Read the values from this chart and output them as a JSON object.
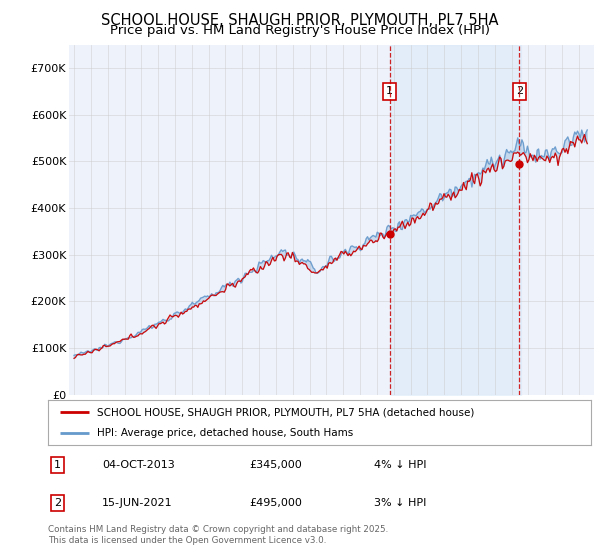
{
  "title": "SCHOOL HOUSE, SHAUGH PRIOR, PLYMOUTH, PL7 5HA",
  "subtitle": "Price paid vs. HM Land Registry's House Price Index (HPI)",
  "ylim": [
    0,
    750000
  ],
  "yticks": [
    0,
    100000,
    200000,
    300000,
    400000,
    500000,
    600000,
    700000
  ],
  "ytick_labels": [
    "£0",
    "£100K",
    "£200K",
    "£300K",
    "£400K",
    "£500K",
    "£600K",
    "£700K"
  ],
  "legend_line1": "SCHOOL HOUSE, SHAUGH PRIOR, PLYMOUTH, PL7 5HA (detached house)",
  "legend_line2": "HPI: Average price, detached house, South Hams",
  "sale1_date": "04-OCT-2013",
  "sale1_price": "£345,000",
  "sale1_note": "4% ↓ HPI",
  "sale2_date": "15-JUN-2021",
  "sale2_price": "£495,000",
  "sale2_note": "3% ↓ HPI",
  "sale1_x": 2013.75,
  "sale2_x": 2021.46,
  "sale1_y": 345000,
  "sale2_y": 495000,
  "copyright_text": "Contains HM Land Registry data © Crown copyright and database right 2025.\nThis data is licensed under the Open Government Licence v3.0.",
  "line_color_red": "#cc0000",
  "line_color_blue": "#6699cc",
  "fill_color_blue": "#d0e4f7",
  "background_color": "#eef2fb",
  "grid_color": "#cccccc",
  "title_fontsize": 10.5,
  "subtitle_fontsize": 9.5,
  "xlim_left": 1994.7,
  "xlim_right": 2025.9
}
